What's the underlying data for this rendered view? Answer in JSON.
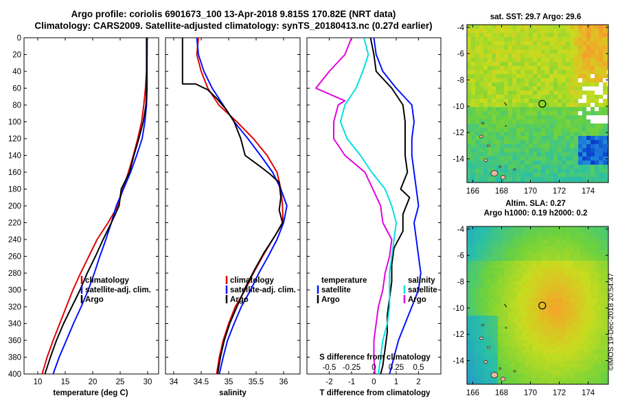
{
  "header": {
    "title_line1": "Argo profile: coriolis 6901673_100 13-Apr-2018 9.815S 170.82E (NRT data)",
    "title_line2": "Climatology: CARS2009. Satellite-adjusted climatology: synTS_20180413.nc (0.27d earlier)"
  },
  "colors": {
    "climatology": "#e00000",
    "satellite": "#0010ff",
    "argo": "#000000",
    "sat_salinity": "#00e0e0",
    "argo_salinity_diff": "#e000e0"
  },
  "chart_data": [
    {
      "type": "line",
      "id": "temperature",
      "xlabel": "temperature (deg C)",
      "xlim": [
        7.5,
        32
      ],
      "ylim": [
        0,
        400
      ],
      "xticks": [
        10,
        15,
        20,
        25,
        30
      ],
      "yticks": [
        0,
        20,
        40,
        60,
        80,
        100,
        120,
        140,
        160,
        180,
        200,
        220,
        240,
        260,
        280,
        300,
        320,
        340,
        360,
        380,
        400
      ],
      "legend": [
        "climatology",
        "satellite-adj. clim.",
        "Argo"
      ],
      "legend_position": "lower-right",
      "series": [
        {
          "name": "climatology",
          "color": "#e00000",
          "points": [
            [
              29.9,
              0
            ],
            [
              29.9,
              20
            ],
            [
              29.8,
              40
            ],
            [
              29.6,
              60
            ],
            [
              29.3,
              80
            ],
            [
              28.9,
              100
            ],
            [
              28.2,
              120
            ],
            [
              27.4,
              140
            ],
            [
              26.5,
              160
            ],
            [
              25.5,
              180
            ],
            [
              24.6,
              200
            ],
            [
              22.8,
              220
            ],
            [
              20.8,
              240
            ],
            [
              19.3,
              260
            ],
            [
              17.8,
              280
            ],
            [
              16.4,
              300
            ],
            [
              15.2,
              320
            ],
            [
              14.0,
              340
            ],
            [
              12.8,
              360
            ],
            [
              11.7,
              380
            ],
            [
              10.8,
              400
            ]
          ]
        },
        {
          "name": "satellite-adj. clim.",
          "color": "#0010ff",
          "points": [
            [
              29.9,
              0
            ],
            [
              29.9,
              20
            ],
            [
              29.9,
              40
            ],
            [
              29.9,
              60
            ],
            [
              29.8,
              80
            ],
            [
              29.5,
              100
            ],
            [
              29.0,
              120
            ],
            [
              28.0,
              140
            ],
            [
              26.9,
              160
            ],
            [
              25.6,
              180
            ],
            [
              24.3,
              200
            ],
            [
              23.4,
              220
            ],
            [
              22.4,
              240
            ],
            [
              21.3,
              260
            ],
            [
              20.3,
              280
            ],
            [
              19.2,
              300
            ],
            [
              17.9,
              320
            ],
            [
              16.5,
              340
            ],
            [
              15.2,
              360
            ],
            [
              13.9,
              380
            ],
            [
              12.8,
              400
            ]
          ]
        },
        {
          "name": "Argo",
          "color": "#000000",
          "points": [
            [
              29.8,
              0
            ],
            [
              29.8,
              20
            ],
            [
              29.8,
              40
            ],
            [
              29.8,
              60
            ],
            [
              29.7,
              80
            ],
            [
              29.2,
              100
            ],
            [
              28.4,
              120
            ],
            [
              27.5,
              140
            ],
            [
              26.7,
              160
            ],
            [
              25.2,
              180
            ],
            [
              24.8,
              200
            ],
            [
              23.4,
              220
            ],
            [
              21.9,
              240
            ],
            [
              20.5,
              260
            ],
            [
              19.0,
              280
            ],
            [
              17.7,
              300
            ],
            [
              16.2,
              320
            ],
            [
              14.7,
              340
            ],
            [
              13.4,
              360
            ],
            [
              12.3,
              380
            ],
            [
              11.3,
              400
            ]
          ]
        }
      ]
    },
    {
      "type": "line",
      "id": "salinity",
      "xlabel": "salinity",
      "xlim": [
        33.85,
        36.3
      ],
      "ylim": [
        0,
        400
      ],
      "xticks": [
        34,
        34.5,
        35,
        35.5,
        36
      ],
      "legend": [
        "climatology",
        "satellite-adj. clim.",
        "Argo"
      ],
      "legend_position": "lower-right",
      "series": [
        {
          "name": "climatology",
          "color": "#e00000",
          "points": [
            [
              34.45,
              0
            ],
            [
              34.42,
              20
            ],
            [
              34.5,
              40
            ],
            [
              34.62,
              60
            ],
            [
              34.82,
              80
            ],
            [
              35.15,
              100
            ],
            [
              35.45,
              120
            ],
            [
              35.7,
              140
            ],
            [
              35.88,
              160
            ],
            [
              35.95,
              180
            ],
            [
              35.98,
              200
            ],
            [
              35.99,
              220
            ],
            [
              35.8,
              240
            ],
            [
              35.62,
              260
            ],
            [
              35.45,
              280
            ],
            [
              35.3,
              300
            ],
            [
              35.12,
              320
            ],
            [
              35.0,
              340
            ],
            [
              34.9,
              360
            ],
            [
              34.83,
              380
            ],
            [
              34.78,
              400
            ]
          ]
        },
        {
          "name": "satellite-adj. clim.",
          "color": "#0010ff",
          "points": [
            [
              34.42,
              0
            ],
            [
              34.45,
              20
            ],
            [
              34.55,
              40
            ],
            [
              34.7,
              60
            ],
            [
              34.9,
              80
            ],
            [
              35.1,
              100
            ],
            [
              35.35,
              120
            ],
            [
              35.58,
              140
            ],
            [
              35.8,
              160
            ],
            [
              35.95,
              180
            ],
            [
              36.06,
              200
            ],
            [
              36.0,
              220
            ],
            [
              35.88,
              240
            ],
            [
              35.72,
              260
            ],
            [
              35.55,
              280
            ],
            [
              35.4,
              300
            ],
            [
              35.23,
              320
            ],
            [
              35.1,
              340
            ],
            [
              34.98,
              360
            ],
            [
              34.9,
              380
            ],
            [
              34.83,
              400
            ]
          ]
        },
        {
          "name": "Argo",
          "color": "#000000",
          "points": [
            [
              34.16,
              -5
            ],
            [
              34.16,
              10
            ],
            [
              34.16,
              20
            ],
            [
              34.16,
              40
            ],
            [
              34.16,
              55
            ],
            [
              34.4,
              55
            ],
            [
              34.62,
              62
            ],
            [
              34.78,
              72
            ],
            [
              34.95,
              85
            ],
            [
              35.1,
              100
            ],
            [
              35.22,
              120
            ],
            [
              35.3,
              140
            ],
            [
              35.55,
              152
            ],
            [
              35.75,
              162
            ],
            [
              35.92,
              172
            ],
            [
              35.95,
              190
            ],
            [
              35.92,
              205
            ],
            [
              35.98,
              220
            ],
            [
              35.85,
              235
            ],
            [
              35.65,
              255
            ],
            [
              35.48,
              275
            ],
            [
              35.32,
              295
            ],
            [
              35.15,
              320
            ],
            [
              35.02,
              340
            ],
            [
              34.92,
              360
            ],
            [
              34.85,
              380
            ],
            [
              34.8,
              400
            ]
          ]
        }
      ]
    },
    {
      "type": "line",
      "id": "difference",
      "xlabel": "T difference from climatology",
      "xlabel_top": "S difference from climatology",
      "xlim": [
        -3,
        3
      ],
      "ylim": [
        0,
        400
      ],
      "xticks": [
        -2,
        -1,
        0,
        1,
        2
      ],
      "xticks_s": [
        -0.5,
        -0.25,
        0,
        0.25,
        0.5
      ],
      "legend_temperature_title": "temperature",
      "legend_salinity_title": "salinity",
      "legend_items": [
        "satellite",
        "Argo"
      ],
      "series": [
        {
          "name": "temperature satellite",
          "color": "#0010ff",
          "points": [
            [
              0.0,
              0
            ],
            [
              0.1,
              20
            ],
            [
              0.4,
              40
            ],
            [
              1.0,
              60
            ],
            [
              1.7,
              80
            ],
            [
              1.8,
              100
            ],
            [
              1.7,
              120
            ],
            [
              1.7,
              140
            ],
            [
              1.8,
              160
            ],
            [
              1.9,
              180
            ],
            [
              2.0,
              200
            ],
            [
              1.8,
              220
            ],
            [
              1.9,
              240
            ],
            [
              2.0,
              260
            ],
            [
              2.1,
              280
            ],
            [
              2.0,
              300
            ],
            [
              1.7,
              320
            ],
            [
              1.4,
              340
            ],
            [
              1.1,
              360
            ],
            [
              0.9,
              380
            ],
            [
              0.7,
              400
            ]
          ]
        },
        {
          "name": "temperature Argo",
          "color": "#000000",
          "points": [
            [
              -0.15,
              0
            ],
            [
              0.0,
              20
            ],
            [
              0.1,
              40
            ],
            [
              0.8,
              60
            ],
            [
              1.3,
              80
            ],
            [
              1.4,
              100
            ],
            [
              1.4,
              120
            ],
            [
              1.4,
              140
            ],
            [
              1.5,
              160
            ],
            [
              1.2,
              180
            ],
            [
              1.6,
              190
            ],
            [
              1.3,
              210
            ],
            [
              1.3,
              230
            ],
            [
              0.9,
              250
            ],
            [
              0.8,
              270
            ],
            [
              0.8,
              290
            ],
            [
              0.7,
              310
            ],
            [
              0.6,
              330
            ],
            [
              0.6,
              350
            ],
            [
              0.5,
              370
            ],
            [
              0.4,
              390
            ],
            [
              0.3,
              400
            ]
          ]
        },
        {
          "name": "salinity satellite",
          "color": "#00e0e0",
          "points": [
            [
              -0.45,
              0
            ],
            [
              -0.25,
              20
            ],
            [
              -0.5,
              40
            ],
            [
              -0.8,
              60
            ],
            [
              -1.3,
              80
            ],
            [
              -1.5,
              100
            ],
            [
              -1.2,
              120
            ],
            [
              -0.6,
              140
            ],
            [
              -0.1,
              160
            ],
            [
              0.5,
              180
            ],
            [
              0.8,
              200
            ],
            [
              1.0,
              220
            ],
            [
              0.9,
              240
            ],
            [
              0.8,
              260
            ],
            [
              0.7,
              280
            ],
            [
              0.7,
              300
            ],
            [
              0.7,
              320
            ],
            [
              0.6,
              340
            ],
            [
              0.4,
              360
            ],
            [
              0.3,
              380
            ],
            [
              0.2,
              400
            ]
          ]
        },
        {
          "name": "salinity Argo",
          "color": "#e000e0",
          "points": [
            [
              -1.0,
              0
            ],
            [
              -1.3,
              20
            ],
            [
              -2.0,
              40
            ],
            [
              -2.6,
              60
            ],
            [
              -1.3,
              75
            ],
            [
              -1.6,
              80
            ],
            [
              -1.8,
              100
            ],
            [
              -1.8,
              120
            ],
            [
              -1.3,
              140
            ],
            [
              -0.4,
              160
            ],
            [
              0.3,
              200
            ],
            [
              0.4,
              220
            ],
            [
              0.8,
              240
            ],
            [
              0.7,
              260
            ],
            [
              0.5,
              280
            ],
            [
              0.4,
              300
            ],
            [
              0.2,
              320
            ],
            [
              0.1,
              340
            ],
            [
              0.0,
              360
            ],
            [
              0.0,
              380
            ],
            [
              0.05,
              400
            ]
          ]
        }
      ]
    },
    {
      "type": "heatmap",
      "id": "sst_map",
      "title": "sat. SST: 29.7 Argo: 29.6",
      "xlim": [
        165.6,
        175.4
      ],
      "ylim": [
        -15.8,
        -3.8
      ],
      "xticks": [
        166,
        168,
        170,
        172,
        174
      ],
      "yticks": [
        -4,
        -6,
        -8,
        -10,
        -12,
        -14
      ],
      "argo_position": [
        170.82,
        -9.815
      ]
    },
    {
      "type": "heatmap",
      "id": "sla_map",
      "title_line1": "Altim. SLA: 0.27",
      "title_line2": "Argo h1000: 0.19 h2000: 0.2",
      "xlim": [
        165.6,
        175.4
      ],
      "ylim": [
        -15.8,
        -3.8
      ],
      "xticks": [
        166,
        168,
        170,
        172,
        174
      ],
      "yticks": [
        -4,
        -6,
        -8,
        -10,
        -12,
        -14
      ],
      "argo_position": [
        170.82,
        -9.815
      ]
    }
  ],
  "credit": "©IMOS 19-Dec-2018 20:54:47"
}
